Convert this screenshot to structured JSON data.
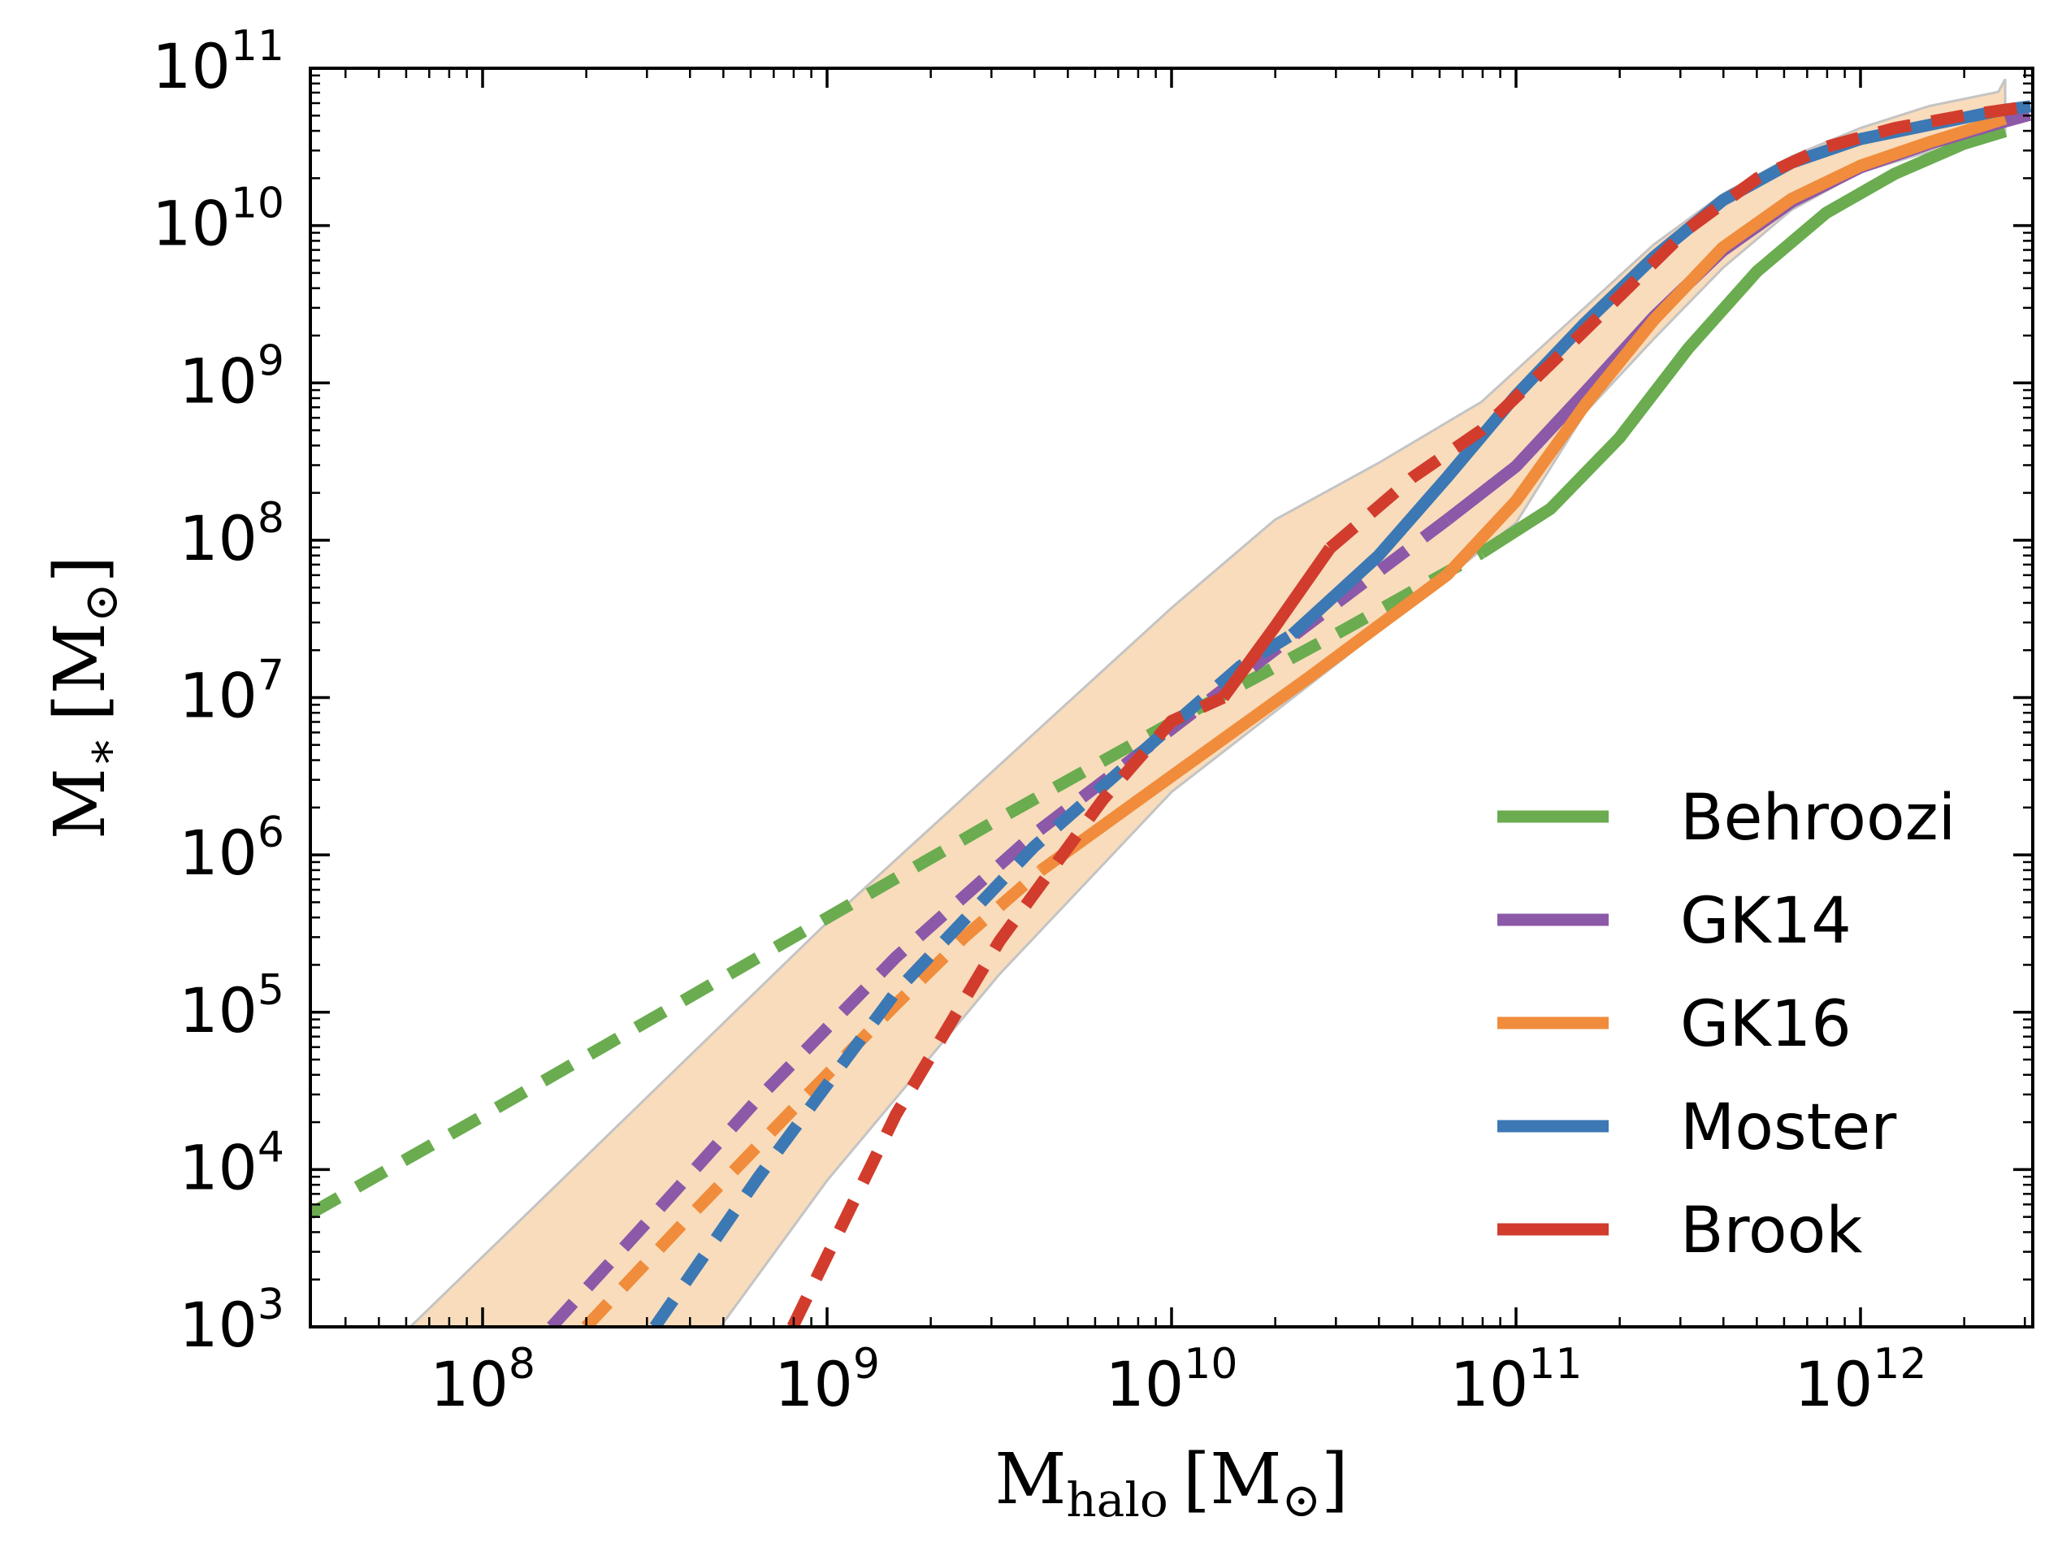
{
  "chart_data": {
    "type": "line",
    "title": "",
    "xlabel": {
      "main": "M",
      "sub": "halo",
      "unit_open": "[",
      "unit_main": "M",
      "unit_sym": "⊙",
      "unit_close": "]"
    },
    "ylabel": {
      "main": "M",
      "sub": "∗",
      "unit_open": "[",
      "unit_main": "M",
      "unit_sym": "⊙",
      "unit_close": "]"
    },
    "x_scale": "log",
    "y_scale": "log",
    "xlim_log10": [
      7.5,
      12.5
    ],
    "ylim_log10": [
      3,
      11
    ],
    "x_ticks": [
      {
        "base": "10",
        "exp": "8"
      },
      {
        "base": "10",
        "exp": "9"
      },
      {
        "base": "10",
        "exp": "10"
      },
      {
        "base": "10",
        "exp": "11"
      },
      {
        "base": "10",
        "exp": "12"
      }
    ],
    "y_ticks": [
      {
        "base": "10",
        "exp": "3"
      },
      {
        "base": "10",
        "exp": "4"
      },
      {
        "base": "10",
        "exp": "5"
      },
      {
        "base": "10",
        "exp": "6"
      },
      {
        "base": "10",
        "exp": "7"
      },
      {
        "base": "10",
        "exp": "8"
      },
      {
        "base": "10",
        "exp": "9"
      },
      {
        "base": "10",
        "exp": "10"
      },
      {
        "base": "10",
        "exp": "11"
      }
    ],
    "legend_position": "lower-right",
    "band": {
      "name": "GK16 scatter",
      "color": "#f8dcbc",
      "edge_color": "#c4c4c4",
      "upper": [
        [
          7.79,
          3.0
        ],
        [
          9.0,
          5.57
        ],
        [
          9.5,
          6.57
        ],
        [
          10.0,
          7.57
        ],
        [
          10.3,
          8.13
        ],
        [
          10.6,
          8.49
        ],
        [
          10.9,
          8.88
        ],
        [
          11.2,
          9.48
        ],
        [
          11.4,
          9.88
        ],
        [
          11.6,
          10.2
        ],
        [
          11.8,
          10.44
        ],
        [
          12.0,
          10.62
        ],
        [
          12.2,
          10.76
        ],
        [
          12.4,
          10.85
        ],
        [
          12.42,
          10.93
        ]
      ],
      "lower": [
        [
          8.69,
          3.0
        ],
        [
          9.0,
          3.93
        ],
        [
          9.5,
          5.24
        ],
        [
          10.0,
          6.4
        ],
        [
          10.5,
          7.25
        ],
        [
          11.0,
          8.11
        ],
        [
          11.2,
          8.81
        ],
        [
          11.4,
          9.28
        ],
        [
          11.6,
          9.73
        ],
        [
          11.8,
          10.1
        ],
        [
          12.0,
          10.34
        ],
        [
          12.2,
          10.47
        ],
        [
          12.4,
          10.57
        ],
        [
          12.42,
          10.57
        ]
      ]
    },
    "series": [
      {
        "name": "Behroozi",
        "color": "#6aac4f",
        "segments": [
          {
            "style": "dashed",
            "points": [
              [
                7.5,
                3.72
              ],
              [
                8.0,
                4.34
              ],
              [
                8.5,
                4.97
              ],
              [
                9.0,
                5.6
              ],
              [
                9.5,
                6.23
              ],
              [
                10.0,
                6.84
              ],
              [
                10.5,
                7.43
              ],
              [
                10.9,
                7.92
              ]
            ]
          },
          {
            "style": "solid",
            "points": [
              [
                10.9,
                7.92
              ],
              [
                11.1,
                8.2
              ],
              [
                11.3,
                8.65
              ],
              [
                11.5,
                9.22
              ],
              [
                11.7,
                9.71
              ],
              [
                11.9,
                10.08
              ],
              [
                12.1,
                10.33
              ],
              [
                12.3,
                10.52
              ],
              [
                12.42,
                10.6
              ]
            ]
          }
        ]
      },
      {
        "name": "GK14",
        "color": "#8c58a8",
        "segments": [
          {
            "style": "dashed",
            "points": [
              [
                8.2,
                3.0
              ],
              [
                8.5,
                3.72
              ],
              [
                8.8,
                4.45
              ],
              [
                9.2,
                5.35
              ],
              [
                9.6,
                6.13
              ],
              [
                10.0,
                6.8
              ],
              [
                10.4,
                7.47
              ],
              [
                10.8,
                8.13
              ]
            ]
          },
          {
            "style": "solid",
            "points": [
              [
                10.8,
                8.13
              ],
              [
                11.0,
                8.47
              ],
              [
                11.2,
                8.94
              ],
              [
                11.4,
                9.42
              ],
              [
                11.6,
                9.84
              ],
              [
                11.8,
                10.15
              ],
              [
                12.0,
                10.37
              ],
              [
                12.2,
                10.52
              ],
              [
                12.4,
                10.65
              ]
            ]
          },
          {
            "style": "dashed",
            "points": [
              [
                12.4,
                10.65
              ],
              [
                12.5,
                10.71
              ]
            ]
          }
        ]
      },
      {
        "name": "GK16",
        "color": "#f08c3b",
        "segments": [
          {
            "style": "dashed",
            "points": [
              [
                8.3,
                3.0
              ],
              [
                8.6,
                3.7
              ],
              [
                8.9,
                4.38
              ],
              [
                9.2,
                5.05
              ],
              [
                9.4,
                5.48
              ],
              [
                9.62,
                5.9
              ]
            ]
          },
          {
            "style": "solid",
            "points": [
              [
                9.62,
                5.9
              ],
              [
                10.0,
                6.5
              ],
              [
                10.4,
                7.13
              ],
              [
                10.8,
                7.78
              ],
              [
                11.0,
                8.25
              ],
              [
                11.2,
                8.86
              ],
              [
                11.4,
                9.4
              ],
              [
                11.6,
                9.86
              ],
              [
                11.8,
                10.17
              ],
              [
                12.0,
                10.38
              ],
              [
                12.2,
                10.53
              ],
              [
                12.42,
                10.68
              ]
            ]
          }
        ]
      },
      {
        "name": "Moster",
        "color": "#3c78b4",
        "segments": [
          {
            "style": "dashed",
            "points": [
              [
                8.5,
                3.0
              ],
              [
                8.8,
                3.95
              ],
              [
                9.2,
                5.13
              ],
              [
                9.6,
                6.05
              ],
              [
                10.0,
                6.82
              ],
              [
                10.2,
                7.2
              ],
              [
                10.35,
                7.4
              ]
            ]
          },
          {
            "style": "solid",
            "points": [
              [
                10.35,
                7.4
              ],
              [
                10.6,
                7.9
              ],
              [
                10.8,
                8.4
              ],
              [
                11.0,
                8.92
              ],
              [
                11.2,
                9.38
              ],
              [
                11.4,
                9.8
              ],
              [
                11.6,
                10.16
              ],
              [
                11.8,
                10.4
              ],
              [
                12.0,
                10.55
              ],
              [
                12.2,
                10.64
              ],
              [
                12.4,
                10.73
              ]
            ]
          },
          {
            "style": "dashed",
            "points": [
              [
                12.4,
                10.73
              ],
              [
                12.5,
                10.76
              ]
            ]
          }
        ]
      },
      {
        "name": "Brook",
        "color": "#d23c2d",
        "segments": [
          {
            "style": "dashed",
            "points": [
              [
                8.9,
                3.0
              ],
              [
                9.2,
                4.35
              ],
              [
                9.5,
                5.45
              ],
              [
                9.8,
                6.35
              ],
              [
                10.0,
                6.85
              ],
              [
                10.15,
                7.0
              ]
            ]
          },
          {
            "style": "solid",
            "points": [
              [
                10.15,
                7.0
              ],
              [
                10.3,
                7.45
              ],
              [
                10.46,
                7.95
              ]
            ]
          },
          {
            "style": "dashed",
            "points": [
              [
                10.46,
                7.95
              ],
              [
                10.7,
                8.4
              ],
              [
                10.9,
                8.7
              ],
              [
                11.1,
                9.12
              ],
              [
                11.3,
                9.55
              ],
              [
                11.5,
                9.98
              ],
              [
                11.7,
                10.3
              ],
              [
                11.9,
                10.5
              ],
              [
                12.1,
                10.62
              ],
              [
                12.3,
                10.7
              ],
              [
                12.5,
                10.76
              ]
            ]
          }
        ]
      }
    ]
  }
}
